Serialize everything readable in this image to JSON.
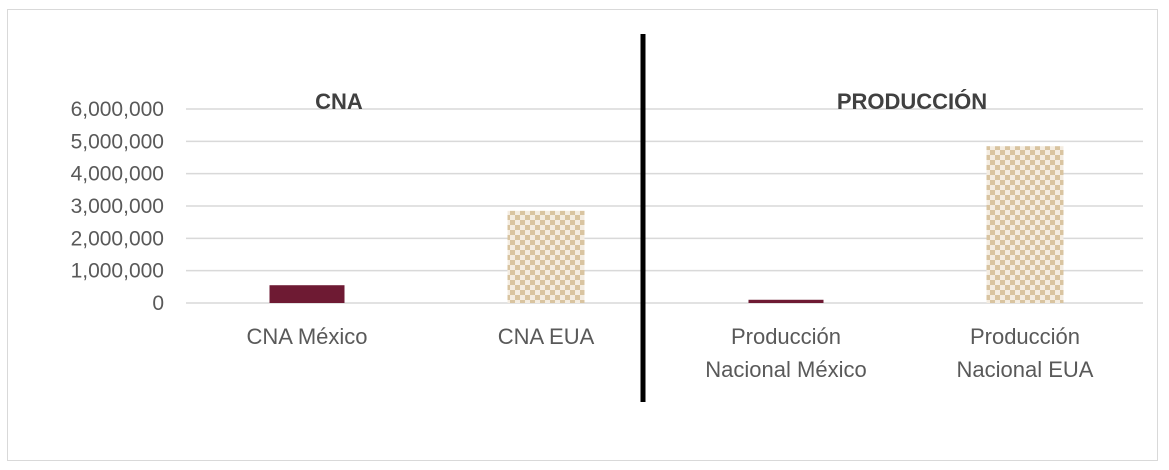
{
  "chart_data": {
    "type": "bar",
    "panels": [
      {
        "title": "CNA",
        "categories": [
          {
            "label_lines": [
              "CNA México"
            ],
            "value": 550000,
            "pattern": "solid"
          },
          {
            "label_lines": [
              "CNA EUA"
            ],
            "value": 2850000,
            "pattern": "checker"
          }
        ]
      },
      {
        "title": "PRODUCCIÓN",
        "categories": [
          {
            "label_lines": [
              "Producción",
              "Nacional México"
            ],
            "value": 100000,
            "pattern": "solid"
          },
          {
            "label_lines": [
              "Producción",
              "Nacional EUA"
            ],
            "value": 4850000,
            "pattern": "checker"
          }
        ]
      }
    ],
    "y_ticks": [
      "0",
      "1,000,000",
      "2,000,000",
      "3,000,000",
      "4,000,000",
      "5,000,000",
      "6,000,000"
    ],
    "ylim": [
      0,
      6000000
    ],
    "grid": true,
    "colors": {
      "mexico": "#6e1a33",
      "eua_fill": "#d9c4a0",
      "eua_light": "#f4ece0",
      "grid": "#d9d9d9",
      "divider": "#000000"
    }
  }
}
